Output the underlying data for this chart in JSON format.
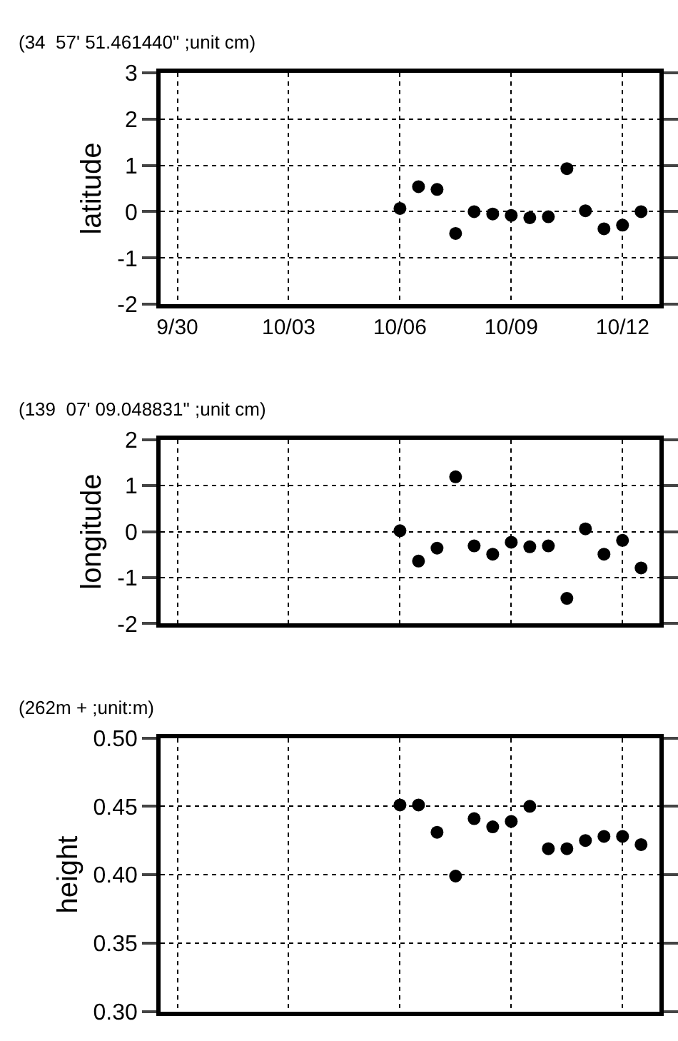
{
  "chart_data": [
    {
      "type": "scatter",
      "title": "(34  57' 51.461440\" ;unit cm)",
      "ylabel": "latitude",
      "x": [
        "--10-06T00:00",
        "--10-06T12:00",
        "--10-07T00:00",
        "--10-07T12:00",
        "--10-08T00:00",
        "--10-08T12:00",
        "--10-09T00:00",
        "--10-09T12:00",
        "--10-10T00:00",
        "--10-10T12:00",
        "--10-11T00:00",
        "--10-11T12:00",
        "--10-12T00:00",
        "--10-12T12:00"
      ],
      "series": [
        {
          "color": "#000000",
          "values": [
            0.07,
            0.54,
            0.48,
            -0.47,
            0.0,
            -0.05,
            -0.08,
            -0.13,
            -0.11,
            0.93,
            0.02,
            -0.37,
            -0.29,
            0.0
          ]
        }
      ],
      "xlim": [
        "--09-29T13:00",
        "--10-13T00:00"
      ],
      "xticks": [
        {
          "value": "--09-30",
          "label": "9/30"
        },
        {
          "value": "--10-03",
          "label": "10/03"
        },
        {
          "value": "--10-06",
          "label": "10/06"
        },
        {
          "value": "--10-09",
          "label": "10/09"
        },
        {
          "value": "--10-12",
          "label": "10/12"
        }
      ],
      "ylim": [
        -2,
        3
      ],
      "yticks": [
        -2,
        -1,
        0,
        1,
        2,
        3
      ],
      "grid": true,
      "marker": "circle"
    },
    {
      "type": "scatter",
      "title": "(139  07' 09.048831\" ;unit cm)",
      "ylabel": "longitude",
      "x": [
        "--10-06T00:00",
        "--10-06T12:00",
        "--10-07T00:00",
        "--10-07T12:00",
        "--10-08T00:00",
        "--10-08T12:00",
        "--10-09T00:00",
        "--10-09T12:00",
        "--10-10T00:00",
        "--10-10T12:00",
        "--10-11T00:00",
        "--10-11T12:00",
        "--10-12T00:00",
        "--10-12T12:00"
      ],
      "series": [
        {
          "color": "#000000",
          "values": [
            0.02,
            -0.64,
            -0.36,
            1.19,
            -0.31,
            -0.49,
            -0.23,
            -0.33,
            -0.31,
            -1.45,
            0.06,
            -0.49,
            -0.19,
            -0.79
          ]
        }
      ],
      "xlim": [
        "--09-29T13:00",
        "--10-13T00:00"
      ],
      "xticks": [
        {
          "value": "--09-30",
          "label": "9/30"
        },
        {
          "value": "--10-03",
          "label": "10/03"
        },
        {
          "value": "--10-06",
          "label": "10/06"
        },
        {
          "value": "--10-09",
          "label": "10/09"
        },
        {
          "value": "--10-12",
          "label": "10/12"
        }
      ],
      "ylim": [
        -2,
        2
      ],
      "yticks": [
        -2,
        -1,
        0,
        1,
        2
      ],
      "grid": true,
      "marker": "circle",
      "tick_labels": "y"
    },
    {
      "type": "scatter",
      "title": "(262m + ;unit:m)",
      "ylabel": "height",
      "x": [
        "--10-06T00:00",
        "--10-06T12:00",
        "--10-07T00:00",
        "--10-07T12:00",
        "--10-08T00:00",
        "--10-08T12:00",
        "--10-09T00:00",
        "--10-09T12:00",
        "--10-10T00:00",
        "--10-10T12:00",
        "--10-11T00:00",
        "--10-11T12:00",
        "--10-12T00:00",
        "--10-12T12:00"
      ],
      "series": [
        {
          "color": "#000000",
          "values": [
            0.451,
            0.451,
            0.431,
            0.399,
            0.441,
            0.435,
            0.439,
            0.45,
            0.419,
            0.419,
            0.425,
            0.428,
            0.428,
            0.422
          ]
        }
      ],
      "xlim": [
        "--09-29T13:00",
        "--10-13T00:00"
      ],
      "xticks": [
        {
          "value": "--09-30",
          "label": "9/30"
        },
        {
          "value": "--10-03",
          "label": "10/03"
        },
        {
          "value": "--10-06",
          "label": "10/06"
        },
        {
          "value": "--10-09",
          "label": "10/09"
        },
        {
          "value": "--10-12",
          "label": "10/12"
        }
      ],
      "ylim": [
        0.3,
        0.5
      ],
      "yticks": [
        {
          "value": 0.3,
          "label": "0.30"
        },
        {
          "value": 0.35,
          "label": "0.35"
        },
        {
          "value": 0.4,
          "label": "0.40"
        },
        {
          "value": 0.45,
          "label": "0.45"
        },
        {
          "value": 0.5,
          "label": "0.50"
        }
      ],
      "grid": true,
      "marker": "circle",
      "tick_labels": "y"
    }
  ]
}
